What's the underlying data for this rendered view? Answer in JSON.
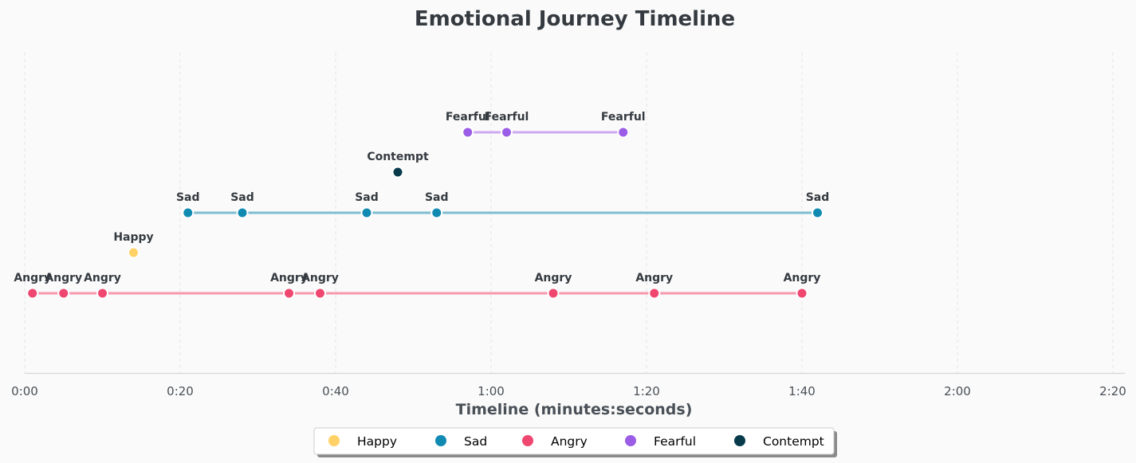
{
  "chart_data": {
    "type": "scatter",
    "title": "Emotional Journey Timeline",
    "xlabel": "Timeline (minutes:seconds)",
    "ylabel": "",
    "xlim": [
      0,
      142
    ],
    "x_ticks": [
      0,
      20,
      40,
      60,
      80,
      100,
      120,
      140
    ],
    "x_tick_labels": [
      "0:00",
      "0:20",
      "0:40",
      "1:00",
      "1:20",
      "1:40",
      "2:00",
      "2:20"
    ],
    "grid": "vertical dashed",
    "legend_placement": "bottom-center",
    "colors": {
      "Happy": "#ffd166",
      "Sad": "#118ab2",
      "Angry": "#ef476f",
      "Fearful": "#9b5de5",
      "Contempt": "#073b4c"
    },
    "series": [
      {
        "name": "Happy",
        "connected": false,
        "points": [
          {
            "x": 14,
            "label": "Happy"
          }
        ]
      },
      {
        "name": "Sad",
        "connected": true,
        "points": [
          {
            "x": 21,
            "label": "Sad"
          },
          {
            "x": 28,
            "label": "Sad"
          },
          {
            "x": 44,
            "label": "Sad"
          },
          {
            "x": 53,
            "label": "Sad"
          },
          {
            "x": 102,
            "label": "Sad"
          }
        ]
      },
      {
        "name": "Angry",
        "connected": true,
        "points": [
          {
            "x": 1,
            "label": "Angry"
          },
          {
            "x": 5,
            "label": "Angry"
          },
          {
            "x": 10,
            "label": "Angry"
          },
          {
            "x": 34,
            "label": "Angry"
          },
          {
            "x": 38,
            "label": "Angry"
          },
          {
            "x": 68,
            "label": "Angry"
          },
          {
            "x": 81,
            "label": "Angry"
          },
          {
            "x": 100,
            "label": "Angry"
          }
        ]
      },
      {
        "name": "Fearful",
        "connected": true,
        "points": [
          {
            "x": 57,
            "label": "Fearful"
          },
          {
            "x": 62,
            "label": "Fearful"
          },
          {
            "x": 77,
            "label": "Fearful"
          }
        ]
      },
      {
        "name": "Contempt",
        "connected": false,
        "points": [
          {
            "x": 48,
            "label": "Contempt"
          }
        ]
      }
    ],
    "legend": [
      "Happy",
      "Sad",
      "Angry",
      "Fearful",
      "Contempt"
    ]
  }
}
